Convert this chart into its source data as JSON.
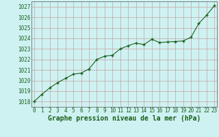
{
  "x": [
    0,
    1,
    2,
    3,
    4,
    5,
    6,
    7,
    8,
    9,
    10,
    11,
    12,
    13,
    14,
    15,
    16,
    17,
    18,
    19,
    20,
    21,
    22,
    23
  ],
  "y": [
    1018.0,
    1018.7,
    1019.3,
    1019.8,
    1020.2,
    1020.6,
    1020.7,
    1021.1,
    1022.0,
    1022.3,
    1022.4,
    1023.0,
    1023.3,
    1023.55,
    1023.4,
    1023.9,
    1023.6,
    1023.65,
    1023.7,
    1023.75,
    1024.1,
    1025.4,
    1026.2,
    1027.1
  ],
  "line_color": "#1a5e1a",
  "marker": "P",
  "marker_size": 2.5,
  "bg_color": "#cef2f2",
  "grid_color": "#c8a0a0",
  "xlabel": "Graphe pression niveau de la mer (hPa)",
  "xlabel_color": "#1a5e1a",
  "xlabel_fontsize": 7,
  "tick_label_color": "#1a5e1a",
  "tick_fontsize": 5.5,
  "ylim": [
    1017.5,
    1027.5
  ],
  "yticks": [
    1018,
    1019,
    1020,
    1021,
    1022,
    1023,
    1024,
    1025,
    1026,
    1027
  ],
  "xticks": [
    0,
    1,
    2,
    3,
    4,
    5,
    6,
    7,
    8,
    9,
    10,
    11,
    12,
    13,
    14,
    15,
    16,
    17,
    18,
    19,
    20,
    21,
    22,
    23
  ],
  "xlim": [
    -0.3,
    23.3
  ]
}
